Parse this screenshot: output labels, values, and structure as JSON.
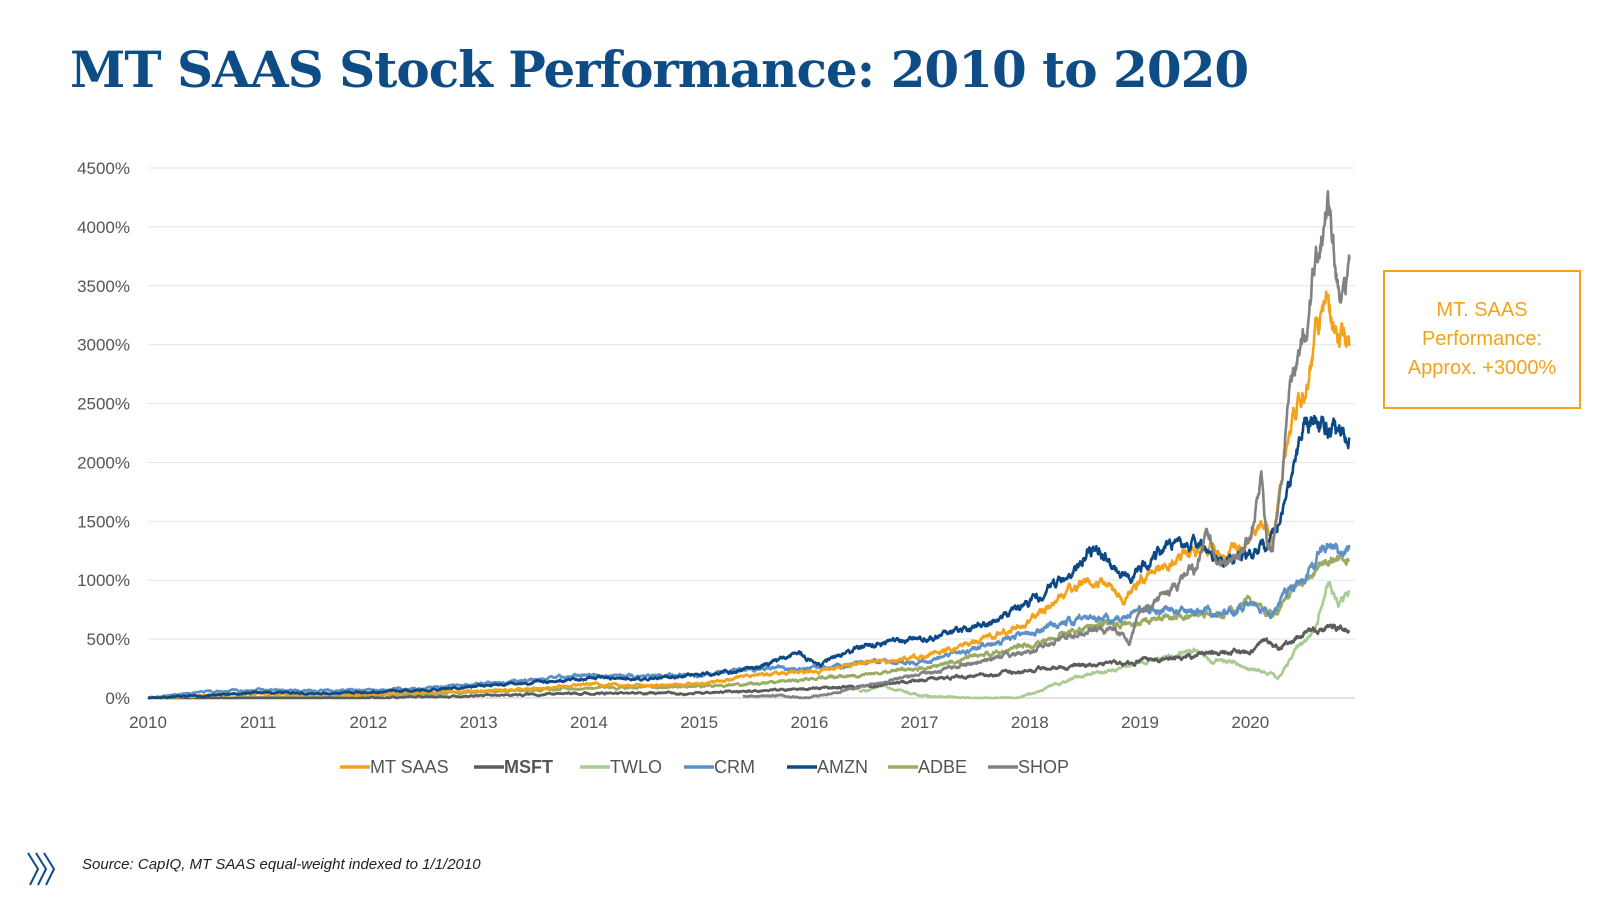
{
  "title": "MT SAAS Stock Performance: 2010 to 2020",
  "source": "Source: CapIQ, MT SAAS  equal-weight indexed to 1/1/2010",
  "callout": {
    "line1": "MT. SAAS",
    "line2": "Performance:",
    "line3": "Approx. +3000%",
    "color": "#f3a21a"
  },
  "logo_icon": "slash-mark-logo-icon",
  "chart_data": {
    "type": "line",
    "title": "MT SAAS Stock Performance: 2010 to 2020",
    "xlabel": "",
    "ylabel": "",
    "xlim": [
      2010,
      2020.95
    ],
    "ylim": [
      0,
      4500
    ],
    "x_ticks": [
      "2010",
      "2011",
      "2012",
      "2013",
      "2014",
      "2015",
      "2016",
      "2017",
      "2018",
      "2019",
      "2020"
    ],
    "y_ticks": [
      "0%",
      "500%",
      "1000%",
      "1500%",
      "2000%",
      "2500%",
      "3000%",
      "3500%",
      "4000%",
      "4500%"
    ],
    "grid": true,
    "legend_position": "bottom",
    "series": [
      {
        "name": "MT SAAS",
        "color": "#f3a21a",
        "x": [
          2010,
          2010.5,
          2011,
          2011.5,
          2012,
          2012.5,
          2013,
          2013.5,
          2014,
          2014.5,
          2015,
          2015.5,
          2016,
          2016.5,
          2017,
          2017.25,
          2017.5,
          2017.75,
          2018,
          2018.25,
          2018.5,
          2018.75,
          2018.85,
          2019,
          2019.25,
          2019.5,
          2019.65,
          2019.8,
          2020,
          2020.15,
          2020.2,
          2020.3,
          2020.4,
          2020.5,
          2020.6,
          2020.7,
          2020.8,
          2020.9
        ],
        "values": [
          0,
          20,
          40,
          30,
          30,
          50,
          60,
          80,
          120,
          110,
          120,
          200,
          220,
          300,
          350,
          400,
          480,
          550,
          650,
          850,
          1000,
          950,
          800,
          1000,
          1150,
          1250,
          1300,
          1200,
          1400,
          1500,
          1300,
          2000,
          2400,
          2600,
          3100,
          3400,
          3000,
          3000
        ]
      },
      {
        "name": "MSFT",
        "color": "#5c5c5c",
        "x": [
          2010,
          2011,
          2012,
          2013,
          2014,
          2015,
          2016,
          2016.5,
          2017,
          2017.5,
          2018,
          2018.5,
          2019,
          2019.5,
          2020,
          2020.15,
          2020.25,
          2020.5,
          2020.75,
          2020.9
        ],
        "values": [
          0,
          -10,
          0,
          20,
          40,
          40,
          80,
          100,
          150,
          190,
          230,
          280,
          310,
          370,
          400,
          500,
          420,
          550,
          620,
          580
        ]
      },
      {
        "name": "TWLO",
        "color": "#a9cc93",
        "x": [
          2016.45,
          2016.7,
          2017,
          2017.5,
          2017.9,
          2018.2,
          2018.5,
          2018.8,
          2019,
          2019.25,
          2019.5,
          2019.65,
          2019.8,
          2020,
          2020.2,
          2020.25,
          2020.4,
          2020.6,
          2020.7,
          2020.8,
          2020.9
        ],
        "values": [
          50,
          100,
          20,
          0,
          0,
          100,
          200,
          250,
          300,
          350,
          400,
          300,
          320,
          250,
          200,
          150,
          400,
          600,
          1000,
          800,
          900
        ]
      },
      {
        "name": "CRM",
        "color": "#5d91c5",
        "x": [
          2010,
          2010.5,
          2011,
          2011.5,
          2012,
          2012.5,
          2013,
          2013.5,
          2014,
          2014.5,
          2015,
          2015.5,
          2016,
          2016.5,
          2017,
          2017.5,
          2018,
          2018.5,
          2018.75,
          2019,
          2019.5,
          2019.75,
          2020,
          2020.2,
          2020.3,
          2020.5,
          2020.65,
          2020.9
        ],
        "values": [
          0,
          50,
          70,
          60,
          70,
          80,
          120,
          150,
          200,
          180,
          200,
          250,
          250,
          300,
          300,
          420,
          550,
          700,
          650,
          750,
          750,
          700,
          800,
          700,
          850,
          1000,
          1300,
          1250
        ]
      },
      {
        "name": "AMZN",
        "color": "#0d4a85",
        "x": [
          2010,
          2010.5,
          2011,
          2011.5,
          2012,
          2012.5,
          2013,
          2013.5,
          2014,
          2014.5,
          2015,
          2015.5,
          2015.9,
          2016.1,
          2016.5,
          2017,
          2017.5,
          2018,
          2018.3,
          2018.6,
          2018.75,
          2018.9,
          2019,
          2019.25,
          2019.5,
          2019.7,
          2019.9,
          2020,
          2020.1,
          2020.15,
          2020.3,
          2020.4,
          2020.5,
          2020.6,
          2020.7,
          2020.8,
          2020.9
        ],
        "values": [
          0,
          20,
          50,
          40,
          50,
          70,
          100,
          130,
          170,
          160,
          200,
          250,
          380,
          280,
          450,
          500,
          600,
          800,
          1000,
          1300,
          1100,
          1000,
          1100,
          1300,
          1300,
          1200,
          1150,
          1200,
          1300,
          1250,
          1600,
          2000,
          2300,
          2400,
          2300,
          2200,
          2250
        ]
      },
      {
        "name": "ADBE",
        "color": "#9aab62",
        "x": [
          2010,
          2011,
          2012,
          2013,
          2014,
          2015,
          2015.5,
          2016,
          2016.5,
          2017,
          2017.5,
          2018,
          2018.5,
          2019,
          2019.5,
          2019.75,
          2020,
          2020.2,
          2020.3,
          2020.5,
          2020.65,
          2020.9
        ],
        "values": [
          0,
          10,
          20,
          50,
          80,
          100,
          120,
          160,
          200,
          250,
          350,
          450,
          600,
          650,
          700,
          700,
          850,
          700,
          800,
          1000,
          1200,
          1150
        ]
      },
      {
        "name": "SHOP",
        "color": "#828282",
        "x": [
          2015.4,
          2015.7,
          2016,
          2016.25,
          2016.5,
          2016.75,
          2017,
          2017.25,
          2017.5,
          2017.75,
          2018,
          2018.25,
          2018.5,
          2018.75,
          2018.9,
          2019,
          2019.25,
          2019.5,
          2019.6,
          2019.75,
          2019.9,
          2020,
          2020.1,
          2020.15,
          2020.2,
          2020.3,
          2020.35,
          2020.45,
          2020.5,
          2020.6,
          2020.65,
          2020.7,
          2020.75,
          2020.8,
          2020.9
        ],
        "values": [
          10,
          20,
          0,
          50,
          100,
          150,
          200,
          250,
          300,
          350,
          400,
          500,
          550,
          600,
          500,
          700,
          900,
          1100,
          1400,
          1100,
          1200,
          1400,
          1900,
          1300,
          1250,
          2000,
          2600,
          3000,
          3100,
          3800,
          4000,
          4200,
          3900,
          3500,
          3600
        ]
      }
    ]
  }
}
